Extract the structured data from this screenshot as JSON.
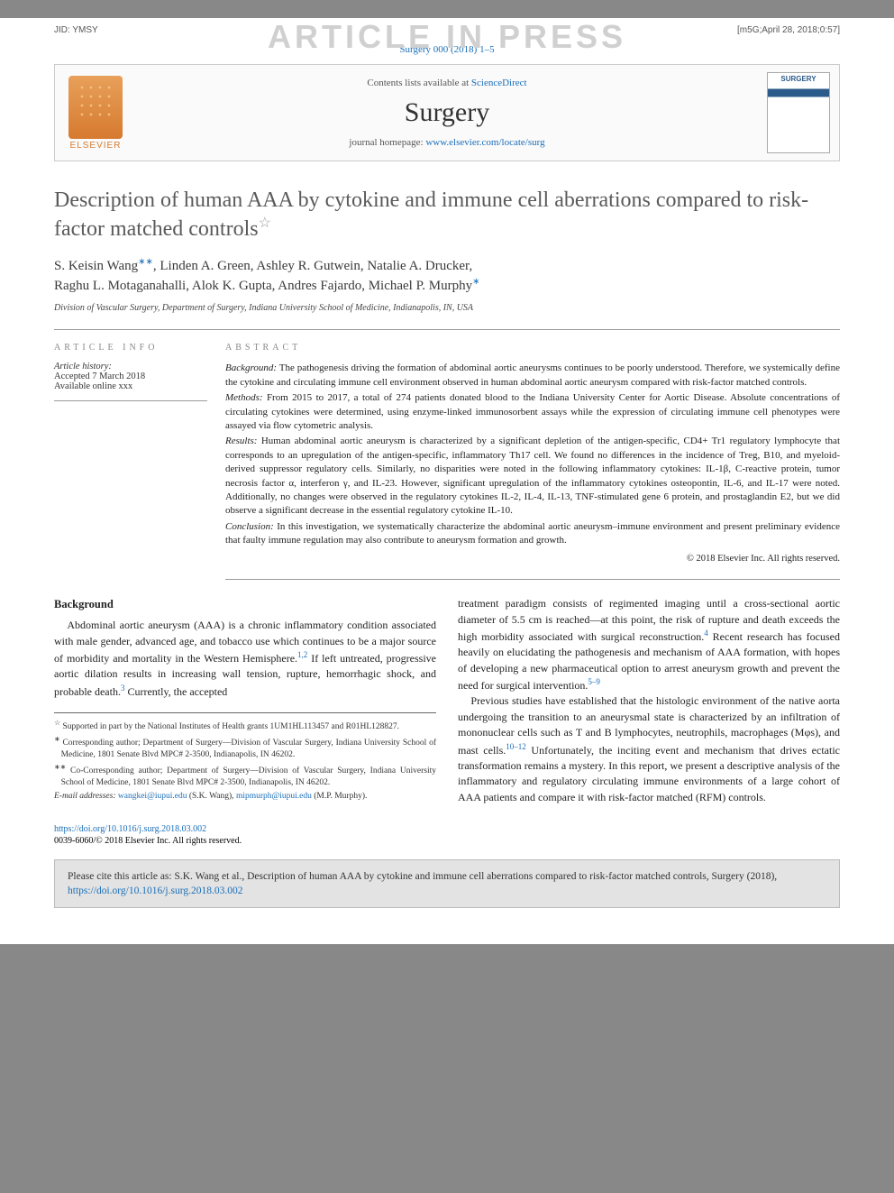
{
  "watermark": "ARTICLE IN PRESS",
  "topbar": {
    "jid": "JID: YMSY",
    "meta": "[m5G;April 28, 2018;0:57]"
  },
  "journal_ref": {
    "pre": "Surgery 000 (2018) 1–5"
  },
  "header": {
    "contents_pre": "Contents lists available at ",
    "contents_link": "ScienceDirect",
    "journal": "Surgery",
    "homepage_pre": "journal homepage: ",
    "homepage_link": "www.elsevier.com/locate/surg",
    "elsevier": "ELSEVIER"
  },
  "title": "Description of human AAA by cytokine and immune cell aberrations compared to risk-factor matched controls",
  "title_star": "☆",
  "authors_line1": "S. Keisin Wang",
  "authors_sup1": "∗∗",
  "authors_line1b": ", Linden A. Green, Ashley R. Gutwein, Natalie A. Drucker,",
  "authors_line2": "Raghu L. Motaganahalli, Alok K. Gupta, Andres Fajardo, Michael P. Murphy",
  "authors_sup2": "∗",
  "affiliation": "Division of Vascular Surgery, Department of Surgery, Indiana University School of Medicine, Indianapolis, IN, USA",
  "labels": {
    "info": "article info",
    "abstract": "abstract"
  },
  "history": {
    "head": "Article history:",
    "accepted": "Accepted 7 March 2018",
    "online": "Available online xxx"
  },
  "abstract": {
    "bg_lead": "Background:",
    "bg": " The pathogenesis driving the formation of abdominal aortic aneurysms continues to be poorly understood. Therefore, we systemically define the cytokine and circulating immune cell environment observed in human abdominal aortic aneurysm compared with risk-factor matched controls.",
    "me_lead": "Methods:",
    "me": " From 2015 to 2017, a total of 274 patients donated blood to the Indiana University Center for Aortic Disease. Absolute concentrations of circulating cytokines were determined, using enzyme-linked immunosorbent assays while the expression of circulating immune cell phenotypes were assayed via flow cytometric analysis.",
    "re_lead": "Results:",
    "re": " Human abdominal aortic aneurysm is characterized by a significant depletion of the antigen-specific, CD4+ Tr1 regulatory lymphocyte that corresponds to an upregulation of the antigen-specific, inflammatory Th17 cell. We found no differences in the incidence of Treg, B10, and myeloid-derived suppressor regulatory cells. Similarly, no disparities were noted in the following inflammatory cytokines: IL-1β, C-reactive protein, tumor necrosis factor α, interferon γ, and IL-23. However, significant upregulation of the inflammatory cytokines osteopontin, IL-6, and IL-17 were noted. Additionally, no changes were observed in the regulatory cytokines IL-2, IL-4, IL-13, TNF-stimulated gene 6 protein, and prostaglandin E2, but we did observe a significant decrease in the essential regulatory cytokine IL-10.",
    "co_lead": "Conclusion:",
    "co": " In this investigation, we systematically characterize the abdominal aortic aneurysm–immune environment and present preliminary evidence that faulty immune regulation may also contribute to aneurysm formation and growth.",
    "copyright": "© 2018 Elsevier Inc. All rights reserved."
  },
  "body": {
    "section_head": "Background",
    "col1_p1a": "Abdominal aortic aneurysm (AAA) is a chronic inflammatory condition associated with male gender, advanced age, and tobacco use which continues to be a major source of morbidity and mortality in the Western Hemisphere.",
    "col1_ref1": "1,2",
    "col1_p1b": " If left untreated, progressive aortic dilation results in increasing wall tension, rupture, hemorrhagic shock, and probable death.",
    "col1_ref2": "3",
    "col1_p1c": " Currently, the accepted",
    "col2_p1a": "treatment paradigm consists of regimented imaging until a cross-sectional aortic diameter of 5.5 cm is reached—at this point, the risk of rupture and death exceeds the high morbidity associated with surgical reconstruction.",
    "col2_ref1": "4",
    "col2_p1b": " Recent research has focused heavily on elucidating the pathogenesis and mechanism of AAA formation, with hopes of developing a new pharmaceutical option to arrest aneurysm growth and prevent the need for surgical intervention.",
    "col2_ref2": "5–9",
    "col2_p2a": "Previous studies have established that the histologic environment of the native aorta undergoing the transition to an aneurysmal state is characterized by an infiltration of mononuclear cells such as T and B lymphocytes, neutrophils, macrophages (Mφs), and mast cells.",
    "col2_ref3": "10–12",
    "col2_p2b": " Unfortunately, the inciting event and mechanism that drives ectatic transformation remains a mystery. In this report, we present a descriptive analysis of the inflammatory and regulatory circulating immune environments of a large cohort of AAA patients and compare it with risk-factor matched (RFM) controls."
  },
  "footnotes": {
    "f1_sym": "☆",
    "f1": " Supported in part by the National Institutes of Health grants 1UM1HL113457 and R01HL128827.",
    "f2_sym": "∗",
    "f2": " Corresponding author; Department of Surgery—Division of Vascular Surgery, Indiana University School of Medicine, 1801 Senate Blvd MPC# 2-3500, Indianapolis, IN 46202.",
    "f3_sym": "∗∗",
    "f3": " Co-Corresponding author; Department of Surgery—Division of Vascular Surgery, Indiana University School of Medicine, 1801 Senate Blvd MPC# 2-3500, Indianapolis, IN 46202.",
    "email_label": "E-mail addresses:",
    "email1": "wangkei@iupui.edu",
    "email1_name": " (S.K. Wang), ",
    "email2": "mipmurph@iupui.edu",
    "email2_name": " (M.P. Murphy)."
  },
  "bottom": {
    "doi": "https://doi.org/10.1016/j.surg.2018.03.002",
    "issn": "0039-6060/© 2018 Elsevier Inc. All rights reserved."
  },
  "cite": {
    "text1": "Please cite this article as: S.K. Wang et al., Description of human AAA by cytokine and immune cell aberrations compared to risk-factor matched controls, Surgery (2018), ",
    "link": "https://doi.org/10.1016/j.surg.2018.03.002"
  },
  "colors": {
    "link": "#1a6eb8",
    "watermark": "#d0d0d0",
    "text": "#222222",
    "muted": "#555555",
    "border": "#999999",
    "cite_bg": "#e3e3e3",
    "elsevier": "#d67a2f"
  },
  "typography": {
    "title_pt": 24,
    "body_pt": 12,
    "abstract_pt": 11,
    "footnote_pt": 9.5,
    "journal_pt": 30
  }
}
